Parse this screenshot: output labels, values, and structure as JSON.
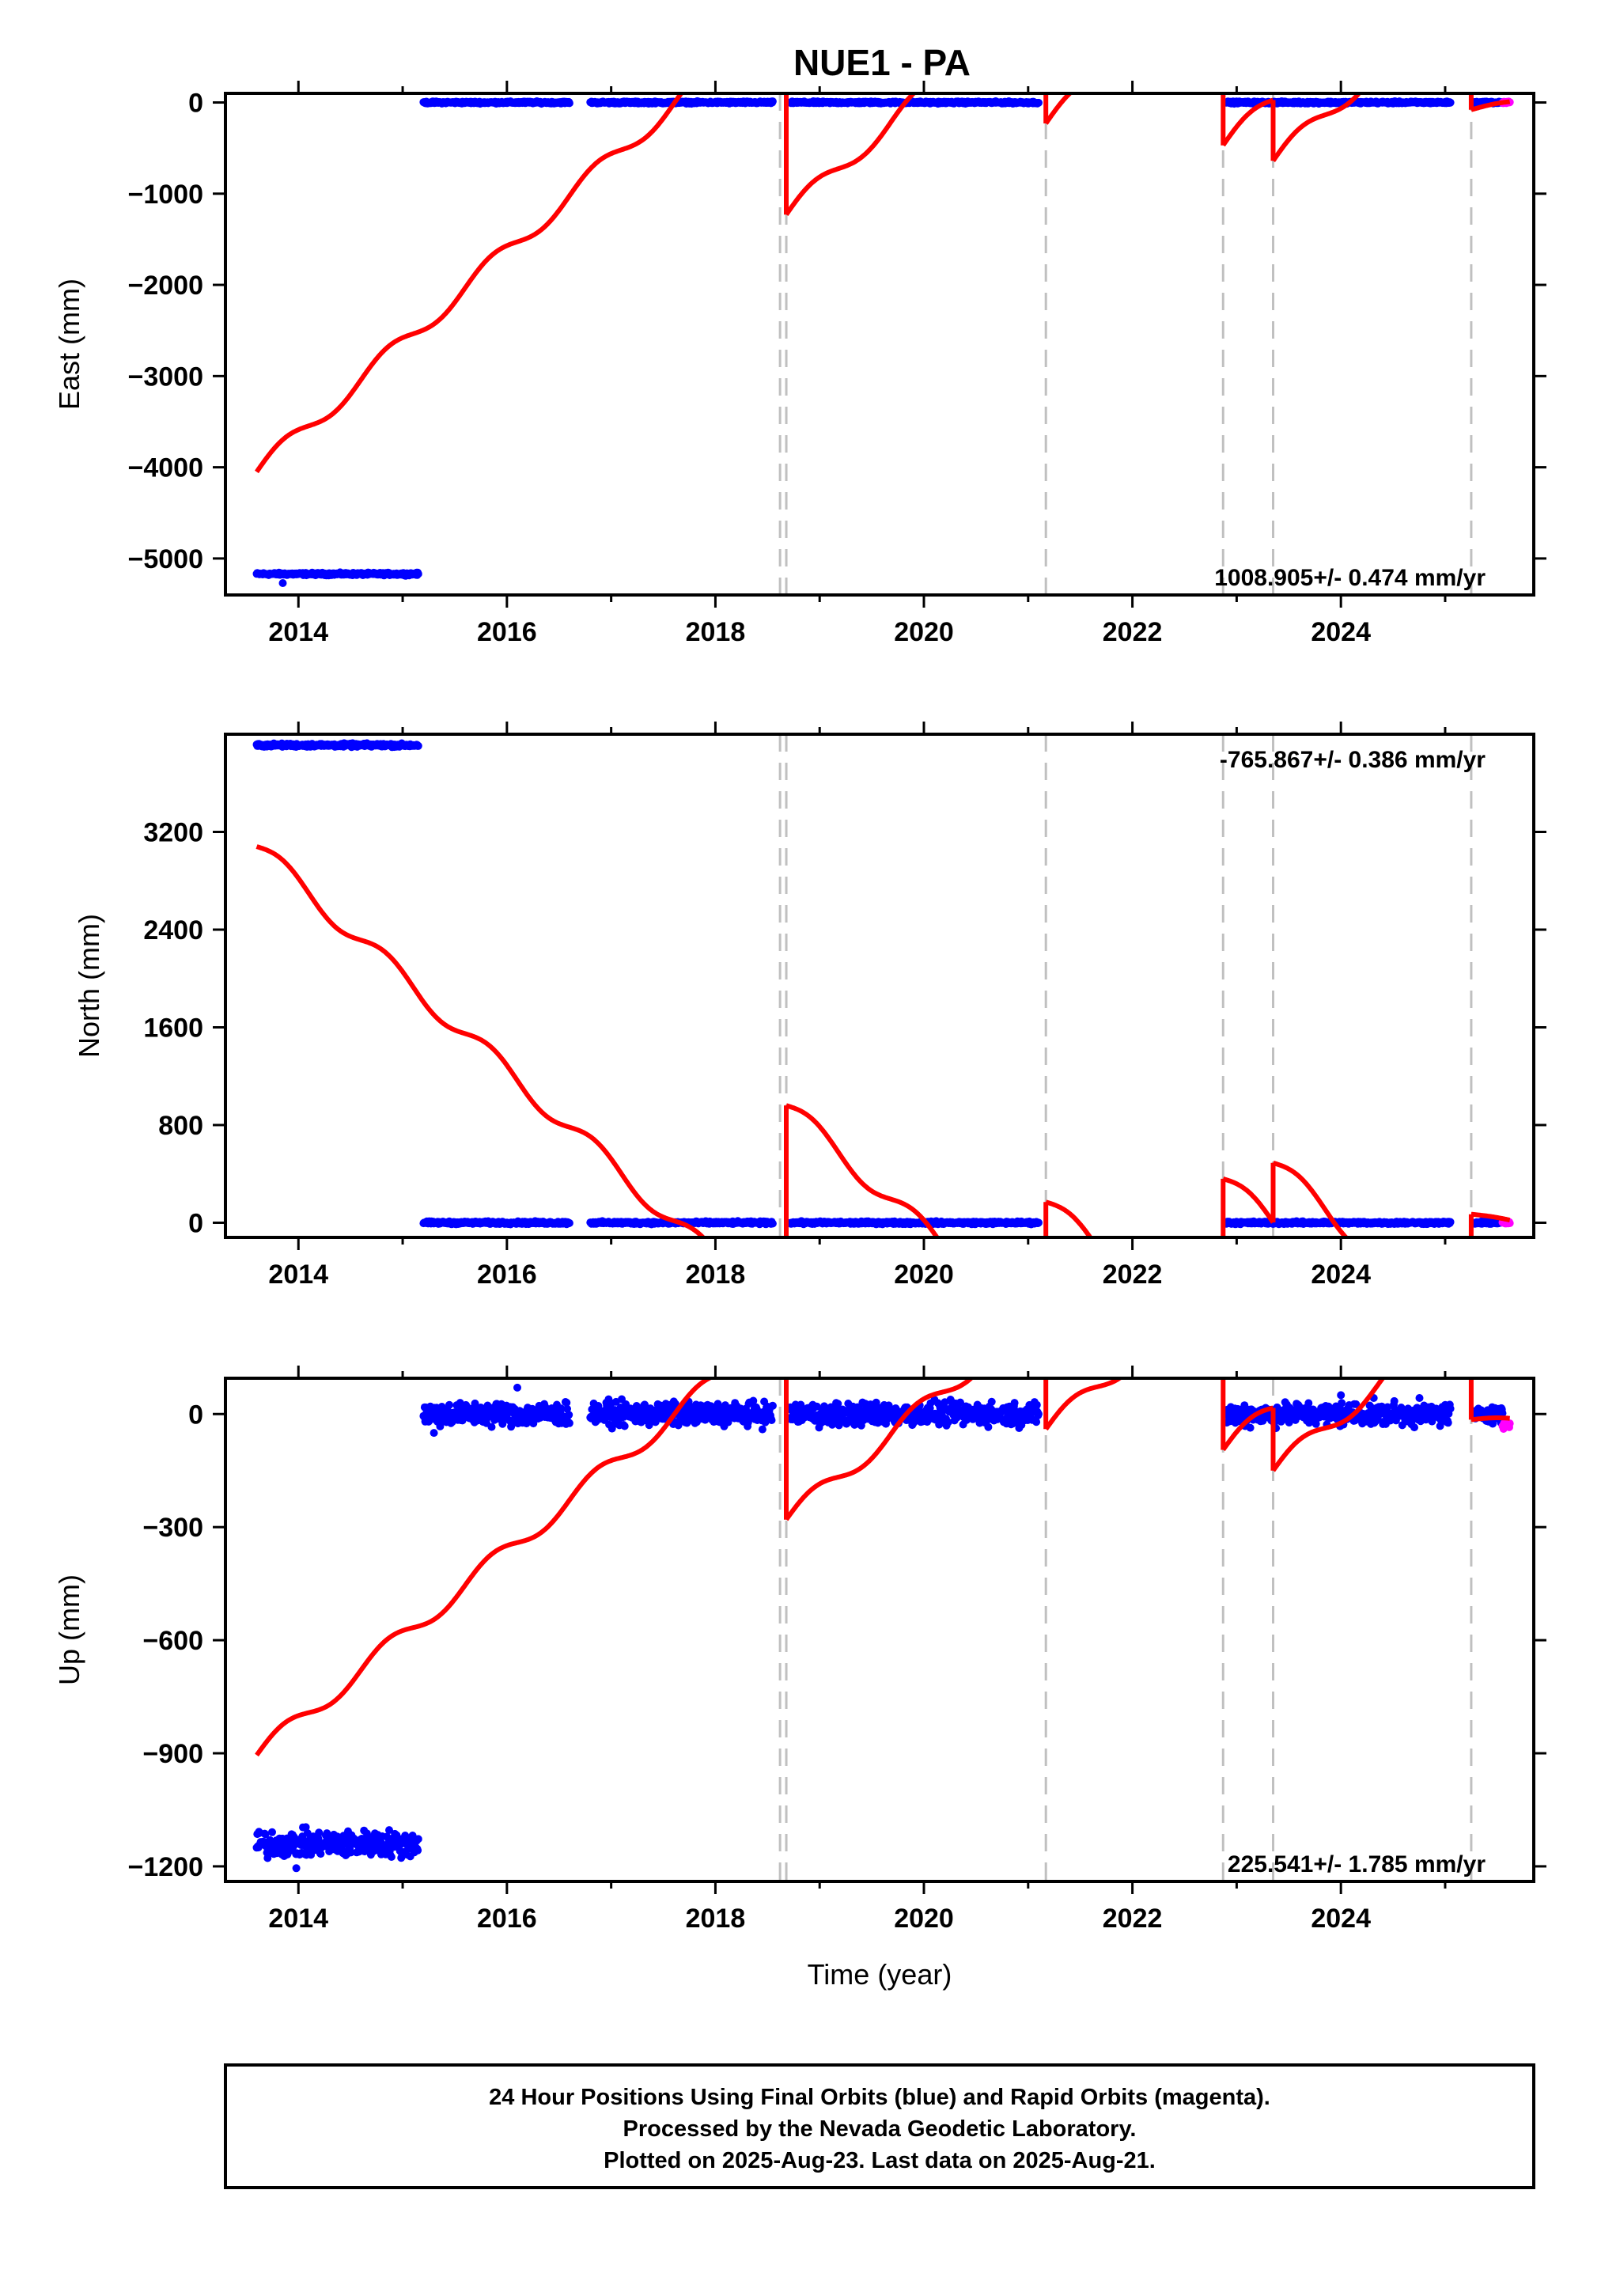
{
  "title": "NUE1 - PA",
  "colors": {
    "final_orbits": "#0000ff",
    "rapid_orbits": "#ff00ff",
    "model": "#ff0000",
    "breaks": "#c0c0c0",
    "frame": "#000000"
  },
  "footer": {
    "line1": "24 Hour Positions Using Final Orbits (blue) and Rapid Orbits (magenta).",
    "line2": "Processed by the Nevada Geodetic Laboratory.",
    "line3": "Plotted on 2025-Aug-23. Last data on 2025-Aug-21."
  },
  "chart_data": [
    {
      "type": "scatter",
      "ylabel": "East (mm)",
      "xlabel": "",
      "rate_text": "1008.905+/- 0.474 mm/yr",
      "xlim": [
        2013.3,
        2025.85
      ],
      "ylim": [
        -5400,
        100
      ],
      "xticks": [
        "2014",
        "2016",
        "2018",
        "2020",
        "2022",
        "2024"
      ],
      "yticks": [
        "0",
        "−1000",
        "−2000",
        "−3000",
        "−4000",
        "−5000"
      ],
      "ytick_values": [
        0,
        -1000,
        -2000,
        -3000,
        -4000,
        -5000
      ],
      "breaks": [
        2018.62,
        2018.68,
        2021.17,
        2022.87,
        2023.35,
        2025.25
      ],
      "final_orbits_segments": [
        {
          "start": 2013.6,
          "end": 2015.15,
          "value": -5170,
          "scatter": 10
        },
        {
          "start": 2015.2,
          "end": 2016.6,
          "value": 0,
          "scatter": 8
        },
        {
          "start": 2016.8,
          "end": 2018.55,
          "value": 0,
          "scatter": 8
        },
        {
          "start": 2018.72,
          "end": 2021.1,
          "value": 0,
          "scatter": 8
        },
        {
          "start": 2022.9,
          "end": 2025.05,
          "value": 0,
          "scatter": 8
        },
        {
          "start": 2025.28,
          "end": 2025.55,
          "value": 0,
          "scatter": 8
        }
      ],
      "outliers": [
        [
          2013.85,
          -5270
        ]
      ],
      "rapid_orbits": {
        "start": 2025.55,
        "end": 2025.62,
        "value": 0,
        "scatter": 8
      },
      "model_segments": [
        {
          "x0": 2013.6,
          "x1": 2018.62,
          "y0": -4050,
          "rate": 1008.905,
          "seasonal": 100
        },
        {
          "x0": 2018.68,
          "x1": 2021.17,
          "y0": -1230,
          "rate": 1008.905,
          "seasonal": 100
        },
        {
          "x0": 2021.17,
          "x1": 2022.87,
          "y0": -230,
          "rate": 1008.905,
          "seasonal": 100
        },
        {
          "x0": 2022.87,
          "x1": 2023.35,
          "y0": -470,
          "rate": 1008.905,
          "seasonal": 100
        },
        {
          "x0": 2023.35,
          "x1": 2025.25,
          "y0": -640,
          "rate": 1008.905,
          "seasonal": 100
        },
        {
          "x0": 2025.25,
          "x1": 2025.62,
          "y0": -80,
          "rate": 200,
          "seasonal": 20
        }
      ]
    },
    {
      "type": "scatter",
      "ylabel": "North (mm)",
      "xlabel": "",
      "rate_text": "-765.867+/- 0.386 mm/yr",
      "xlim": [
        2013.3,
        2025.85
      ],
      "ylim": [
        -120,
        4000
      ],
      "xticks": [
        "2014",
        "2016",
        "2018",
        "2020",
        "2022",
        "2024"
      ],
      "yticks": [
        "0",
        "800",
        "1600",
        "2400",
        "3200"
      ],
      "ytick_values": [
        0,
        800,
        1600,
        2400,
        3200
      ],
      "breaks": [
        2018.62,
        2018.68,
        2021.17,
        2022.87,
        2023.35,
        2025.25
      ],
      "final_orbits_segments": [
        {
          "start": 2013.6,
          "end": 2015.15,
          "value": 3910,
          "scatter": 10
        },
        {
          "start": 2015.2,
          "end": 2016.6,
          "value": 0,
          "scatter": 8
        },
        {
          "start": 2016.8,
          "end": 2018.55,
          "value": 0,
          "scatter": 8
        },
        {
          "start": 2018.72,
          "end": 2021.1,
          "value": 0,
          "scatter": 8
        },
        {
          "start": 2022.9,
          "end": 2025.05,
          "value": 0,
          "scatter": 8
        },
        {
          "start": 2025.28,
          "end": 2025.55,
          "value": 0,
          "scatter": 8
        }
      ],
      "outliers": [],
      "rapid_orbits": {
        "start": 2025.55,
        "end": 2025.62,
        "value": 0,
        "scatter": 8
      },
      "model_segments": [
        {
          "x0": 2013.6,
          "x1": 2018.62,
          "y0": 3080,
          "rate": -765.867,
          "seasonal": 80
        },
        {
          "x0": 2018.68,
          "x1": 2021.17,
          "y0": 960,
          "rate": -765.867,
          "seasonal": 80
        },
        {
          "x0": 2021.17,
          "x1": 2022.87,
          "y0": 170,
          "rate": -765.867,
          "seasonal": 80
        },
        {
          "x0": 2022.87,
          "x1": 2023.35,
          "y0": 360,
          "rate": -765.867,
          "seasonal": 80
        },
        {
          "x0": 2023.35,
          "x1": 2025.25,
          "y0": 490,
          "rate": -765.867,
          "seasonal": 80
        },
        {
          "x0": 2025.25,
          "x1": 2025.62,
          "y0": 70,
          "rate": -150,
          "seasonal": 10
        }
      ]
    },
    {
      "type": "scatter",
      "ylabel": "Up (mm)",
      "xlabel": "Time (year)",
      "rate_text": "225.541+/- 1.785 mm/yr",
      "xlim": [
        2013.3,
        2025.85
      ],
      "ylim": [
        -1240,
        95
      ],
      "xticks": [
        "2014",
        "2016",
        "2018",
        "2020",
        "2022",
        "2024"
      ],
      "yticks": [
        "0",
        "−300",
        "−600",
        "−900",
        "−1200"
      ],
      "ytick_values": [
        0,
        -300,
        -600,
        -900,
        -1200
      ],
      "breaks": [
        2018.62,
        2018.68,
        2021.17,
        2022.87,
        2023.35,
        2025.25
      ],
      "final_orbits_segments": [
        {
          "start": 2013.6,
          "end": 2015.15,
          "value": -1140,
          "scatter": 25
        },
        {
          "start": 2015.2,
          "end": 2016.6,
          "value": 0,
          "scatter": 22
        },
        {
          "start": 2016.8,
          "end": 2018.55,
          "value": 0,
          "scatter": 22
        },
        {
          "start": 2018.72,
          "end": 2021.1,
          "value": 0,
          "scatter": 22
        },
        {
          "start": 2022.9,
          "end": 2025.05,
          "value": 0,
          "scatter": 22
        },
        {
          "start": 2025.28,
          "end": 2025.55,
          "value": 0,
          "scatter": 15
        }
      ],
      "outliers": [
        [
          2013.98,
          -1205
        ],
        [
          2015.3,
          -50
        ],
        [
          2016.1,
          70
        ],
        [
          2024.0,
          50
        ]
      ],
      "rapid_orbits": {
        "start": 2025.55,
        "end": 2025.62,
        "value": -30,
        "scatter": 15
      },
      "model_segments": [
        {
          "x0": 2013.6,
          "x1": 2018.62,
          "y0": -905,
          "rate": 225.541,
          "seasonal": 25
        },
        {
          "x0": 2018.68,
          "x1": 2021.17,
          "y0": -280,
          "rate": 225.541,
          "seasonal": 25
        },
        {
          "x0": 2021.17,
          "x1": 2022.87,
          "y0": -40,
          "rate": 225.541,
          "seasonal": 25
        },
        {
          "x0": 2022.87,
          "x1": 2023.35,
          "y0": -95,
          "rate": 225.541,
          "seasonal": 25
        },
        {
          "x0": 2023.35,
          "x1": 2025.25,
          "y0": -150,
          "rate": 225.541,
          "seasonal": 25
        },
        {
          "x0": 2025.25,
          "x1": 2025.62,
          "y0": -15,
          "rate": 0,
          "seasonal": 5
        }
      ]
    }
  ]
}
